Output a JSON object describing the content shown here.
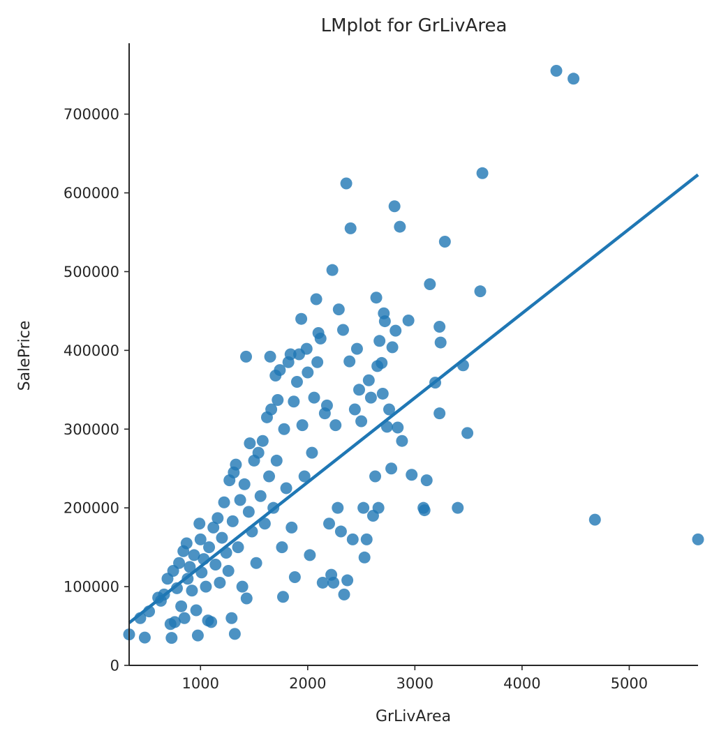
{
  "chart_data": {
    "type": "scatter",
    "title": "LMplot for GrLivArea",
    "xlabel": "GrLivArea",
    "ylabel": "SalePrice",
    "xlim": [
      334,
      5642
    ],
    "ylim": [
      0,
      790000
    ],
    "xticks": [
      1000,
      2000,
      3000,
      4000,
      5000
    ],
    "xtick_labels": [
      "1000",
      "2000",
      "3000",
      "4000",
      "5000"
    ],
    "yticks": [
      0,
      100000,
      200000,
      300000,
      400000,
      500000,
      600000,
      700000
    ],
    "ytick_labels": [
      "0",
      "100000",
      "200000",
      "300000",
      "400000",
      "500000",
      "600000",
      "700000"
    ],
    "grid": false,
    "legend": "none",
    "color": "#1f77b4",
    "regression_line": {
      "x": [
        334,
        5642
      ],
      "y": [
        54000,
        623000
      ]
    },
    "points": [
      {
        "x": 334,
        "y": 39300
      },
      {
        "x": 438,
        "y": 60000
      },
      {
        "x": 480,
        "y": 35300
      },
      {
        "x": 520,
        "y": 68500
      },
      {
        "x": 605,
        "y": 86000
      },
      {
        "x": 630,
        "y": 82000
      },
      {
        "x": 660,
        "y": 90000
      },
      {
        "x": 692,
        "y": 110000
      },
      {
        "x": 720,
        "y": 52500
      },
      {
        "x": 730,
        "y": 34900
      },
      {
        "x": 745,
        "y": 120000
      },
      {
        "x": 760,
        "y": 55000
      },
      {
        "x": 780,
        "y": 98000
      },
      {
        "x": 800,
        "y": 130000
      },
      {
        "x": 820,
        "y": 75000
      },
      {
        "x": 840,
        "y": 145000
      },
      {
        "x": 850,
        "y": 60000
      },
      {
        "x": 870,
        "y": 155000
      },
      {
        "x": 880,
        "y": 110000
      },
      {
        "x": 900,
        "y": 125000
      },
      {
        "x": 920,
        "y": 95000
      },
      {
        "x": 940,
        "y": 140000
      },
      {
        "x": 960,
        "y": 70000
      },
      {
        "x": 975,
        "y": 38000
      },
      {
        "x": 990,
        "y": 180000
      },
      {
        "x": 1000,
        "y": 160000
      },
      {
        "x": 1010,
        "y": 118000
      },
      {
        "x": 1030,
        "y": 135000
      },
      {
        "x": 1050,
        "y": 100000
      },
      {
        "x": 1070,
        "y": 57000
      },
      {
        "x": 1080,
        "y": 150000
      },
      {
        "x": 1100,
        "y": 55000
      },
      {
        "x": 1120,
        "y": 175000
      },
      {
        "x": 1140,
        "y": 128000
      },
      {
        "x": 1160,
        "y": 187000
      },
      {
        "x": 1180,
        "y": 105000
      },
      {
        "x": 1200,
        "y": 162000
      },
      {
        "x": 1220,
        "y": 207000
      },
      {
        "x": 1240,
        "y": 143000
      },
      {
        "x": 1260,
        "y": 120000
      },
      {
        "x": 1270,
        "y": 235000
      },
      {
        "x": 1290,
        "y": 60000
      },
      {
        "x": 1300,
        "y": 183000
      },
      {
        "x": 1310,
        "y": 245000
      },
      {
        "x": 1320,
        "y": 40000
      },
      {
        "x": 1330,
        "y": 255000
      },
      {
        "x": 1350,
        "y": 150000
      },
      {
        "x": 1370,
        "y": 210000
      },
      {
        "x": 1390,
        "y": 100000
      },
      {
        "x": 1410,
        "y": 230000
      },
      {
        "x": 1425,
        "y": 392000
      },
      {
        "x": 1430,
        "y": 85000
      },
      {
        "x": 1450,
        "y": 195000
      },
      {
        "x": 1460,
        "y": 282000
      },
      {
        "x": 1480,
        "y": 170000
      },
      {
        "x": 1500,
        "y": 260000
      },
      {
        "x": 1520,
        "y": 130000
      },
      {
        "x": 1540,
        "y": 270000
      },
      {
        "x": 1560,
        "y": 215000
      },
      {
        "x": 1580,
        "y": 285000
      },
      {
        "x": 1600,
        "y": 180000
      },
      {
        "x": 1620,
        "y": 315000
      },
      {
        "x": 1640,
        "y": 240000
      },
      {
        "x": 1650,
        "y": 392000
      },
      {
        "x": 1660,
        "y": 325000
      },
      {
        "x": 1680,
        "y": 200000
      },
      {
        "x": 1700,
        "y": 368000
      },
      {
        "x": 1710,
        "y": 260000
      },
      {
        "x": 1720,
        "y": 337000
      },
      {
        "x": 1740,
        "y": 375000
      },
      {
        "x": 1760,
        "y": 150000
      },
      {
        "x": 1770,
        "y": 87000
      },
      {
        "x": 1780,
        "y": 300000
      },
      {
        "x": 1800,
        "y": 225000
      },
      {
        "x": 1820,
        "y": 385000
      },
      {
        "x": 1840,
        "y": 395000
      },
      {
        "x": 1850,
        "y": 175000
      },
      {
        "x": 1870,
        "y": 335000
      },
      {
        "x": 1880,
        "y": 112000
      },
      {
        "x": 1900,
        "y": 360000
      },
      {
        "x": 1920,
        "y": 395000
      },
      {
        "x": 1940,
        "y": 440000
      },
      {
        "x": 1950,
        "y": 305000
      },
      {
        "x": 1970,
        "y": 240000
      },
      {
        "x": 1990,
        "y": 402000
      },
      {
        "x": 2000,
        "y": 372000
      },
      {
        "x": 2020,
        "y": 140000
      },
      {
        "x": 2040,
        "y": 270000
      },
      {
        "x": 2060,
        "y": 340000
      },
      {
        "x": 2080,
        "y": 465000
      },
      {
        "x": 2090,
        "y": 385000
      },
      {
        "x": 2100,
        "y": 422000
      },
      {
        "x": 2120,
        "y": 415000
      },
      {
        "x": 2140,
        "y": 105000
      },
      {
        "x": 2160,
        "y": 320000
      },
      {
        "x": 2180,
        "y": 330000
      },
      {
        "x": 2200,
        "y": 180000
      },
      {
        "x": 2220,
        "y": 115000
      },
      {
        "x": 2230,
        "y": 502000
      },
      {
        "x": 2240,
        "y": 105000
      },
      {
        "x": 2260,
        "y": 305000
      },
      {
        "x": 2280,
        "y": 200000
      },
      {
        "x": 2290,
        "y": 452000
      },
      {
        "x": 2310,
        "y": 170000
      },
      {
        "x": 2330,
        "y": 426000
      },
      {
        "x": 2340,
        "y": 90000
      },
      {
        "x": 2360,
        "y": 612000
      },
      {
        "x": 2370,
        "y": 108000
      },
      {
        "x": 2390,
        "y": 386000
      },
      {
        "x": 2400,
        "y": 555000
      },
      {
        "x": 2420,
        "y": 160000
      },
      {
        "x": 2440,
        "y": 325000
      },
      {
        "x": 2460,
        "y": 402000
      },
      {
        "x": 2480,
        "y": 350000
      },
      {
        "x": 2500,
        "y": 310000
      },
      {
        "x": 2520,
        "y": 200000
      },
      {
        "x": 2530,
        "y": 137000
      },
      {
        "x": 2550,
        "y": 160000
      },
      {
        "x": 2570,
        "y": 362000
      },
      {
        "x": 2590,
        "y": 340000
      },
      {
        "x": 2610,
        "y": 190000
      },
      {
        "x": 2630,
        "y": 240000
      },
      {
        "x": 2640,
        "y": 467000
      },
      {
        "x": 2650,
        "y": 380000
      },
      {
        "x": 2660,
        "y": 200000
      },
      {
        "x": 2670,
        "y": 412000
      },
      {
        "x": 2690,
        "y": 384000
      },
      {
        "x": 2700,
        "y": 345000
      },
      {
        "x": 2710,
        "y": 447000
      },
      {
        "x": 2720,
        "y": 437000
      },
      {
        "x": 2740,
        "y": 303000
      },
      {
        "x": 2760,
        "y": 325000
      },
      {
        "x": 2780,
        "y": 250000
      },
      {
        "x": 2790,
        "y": 404000
      },
      {
        "x": 2810,
        "y": 583000
      },
      {
        "x": 2820,
        "y": 425000
      },
      {
        "x": 2840,
        "y": 302000
      },
      {
        "x": 2860,
        "y": 557000
      },
      {
        "x": 2880,
        "y": 285000
      },
      {
        "x": 2940,
        "y": 438000
      },
      {
        "x": 2970,
        "y": 242000
      },
      {
        "x": 3080,
        "y": 200000
      },
      {
        "x": 3090,
        "y": 197000
      },
      {
        "x": 3110,
        "y": 235000
      },
      {
        "x": 3140,
        "y": 484000
      },
      {
        "x": 3190,
        "y": 359000
      },
      {
        "x": 3230,
        "y": 320000
      },
      {
        "x": 3230,
        "y": 430000
      },
      {
        "x": 3240,
        "y": 410000
      },
      {
        "x": 3280,
        "y": 538000
      },
      {
        "x": 3400,
        "y": 200000
      },
      {
        "x": 3450,
        "y": 381000
      },
      {
        "x": 3490,
        "y": 295000
      },
      {
        "x": 3610,
        "y": 475000
      },
      {
        "x": 3630,
        "y": 625000
      },
      {
        "x": 4320,
        "y": 755000
      },
      {
        "x": 4480,
        "y": 745000
      },
      {
        "x": 4680,
        "y": 185000
      },
      {
        "x": 5642,
        "y": 160000
      }
    ]
  }
}
